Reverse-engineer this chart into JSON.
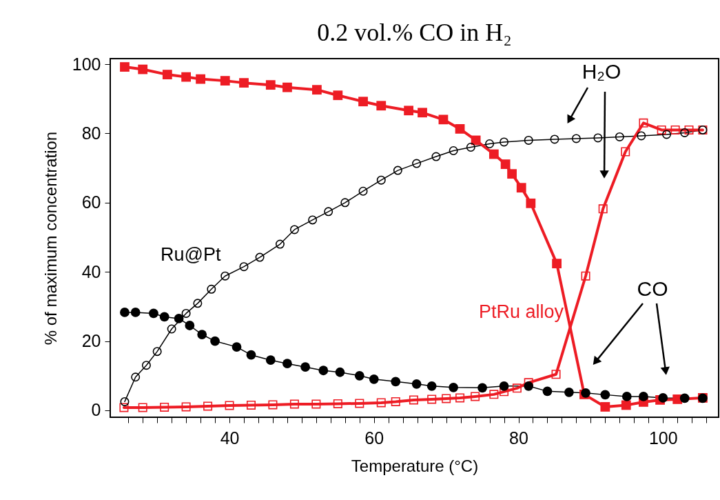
{
  "chart_data": {
    "type": "line",
    "title": "0.2 vol.% CO in H₂",
    "xlabel": "Temperature (°C)",
    "ylabel": "% of maximum concentration",
    "xlim": [
      23.5,
      107.7
    ],
    "ylim": [
      -2,
      101.6
    ],
    "xticks": [
      {
        "value": 26,
        "label": null
      },
      {
        "value": 28,
        "label": null
      },
      {
        "value": 30,
        "label": null
      },
      {
        "value": 32,
        "label": null
      },
      {
        "value": 34,
        "label": null
      },
      {
        "value": 36,
        "label": null
      },
      {
        "value": 38,
        "label": null
      },
      40,
      {
        "value": 42,
        "label": null
      },
      {
        "value": 44,
        "label": null
      },
      {
        "value": 46,
        "label": null
      },
      {
        "value": 48,
        "label": null
      },
      {
        "value": 50,
        "label": null
      },
      {
        "value": 52,
        "label": null
      },
      {
        "value": 54,
        "label": null
      },
      {
        "value": 56,
        "label": null
      },
      {
        "value": 58,
        "label": null
      },
      60,
      {
        "value": 62,
        "label": null
      },
      {
        "value": 64,
        "label": null
      },
      {
        "value": 66,
        "label": null
      },
      {
        "value": 68,
        "label": null
      },
      {
        "value": 70,
        "label": null
      },
      {
        "value": 72,
        "label": null
      },
      {
        "value": 74,
        "label": null
      },
      {
        "value": 76,
        "label": null
      },
      {
        "value": 78,
        "label": null
      },
      80,
      {
        "value": 82,
        "label": null
      },
      {
        "value": 84,
        "label": null
      },
      {
        "value": 86,
        "label": null
      },
      {
        "value": 88,
        "label": null
      },
      {
        "value": 90,
        "label": null
      },
      {
        "value": 92,
        "label": null
      },
      {
        "value": 94,
        "label": null
      },
      {
        "value": 96,
        "label": null
      },
      {
        "value": 98,
        "label": null
      },
      100,
      {
        "value": 102,
        "label": null
      },
      {
        "value": 104,
        "label": null
      },
      {
        "value": 106,
        "label": null
      }
    ],
    "yticks": [
      0,
      20,
      40,
      60,
      80,
      100
    ],
    "grid": false,
    "annotations": [
      "Ru@Pt",
      "PtRu alloy",
      "H₂O",
      "CO"
    ],
    "series": [
      {
        "color": "#000000",
        "marker": "circle",
        "x": [
          25.5,
          27,
          29.5,
          31,
          33,
          34.5,
          36.2,
          38,
          41,
          43,
          45.7,
          48,
          50.5,
          53,
          55.3,
          58,
          60,
          63,
          65.9,
          68,
          71,
          75,
          78,
          81.4,
          84,
          87,
          89.3,
          92,
          95,
          97.3,
          100,
          103,
          105.5
        ],
        "values": [
          28.3,
          28.3,
          28,
          27,
          26.5,
          24.5,
          21.9,
          20,
          18.3,
          16,
          14.5,
          13.5,
          12.5,
          11.5,
          11,
          10,
          9,
          8.3,
          7.6,
          7,
          6.6,
          6.5,
          7,
          7,
          5.5,
          5.2,
          5,
          4.5,
          4,
          4,
          3.6,
          3.5,
          3.5
        ]
      },
      {
        "color": "#000000",
        "marker": "circle",
        "x": [
          25.5,
          27,
          28.5,
          30,
          32,
          34,
          35.6,
          37.5,
          39.4,
          42,
          44.2,
          47,
          49,
          51.5,
          53.7,
          56,
          58.5,
          61,
          63.3,
          65.9,
          68.6,
          71,
          73.4,
          76,
          78,
          81.4,
          85,
          88,
          91,
          94,
          97,
          100.5,
          103,
          105.5
        ],
        "values": [
          2.5,
          9.6,
          13,
          17,
          23.5,
          28,
          30.9,
          35,
          38.8,
          41.5,
          44.2,
          48,
          52.2,
          55,
          57.4,
          60,
          63.3,
          66.5,
          69.3,
          71.3,
          73.3,
          75,
          76,
          77,
          77.5,
          78,
          78.3,
          78.5,
          78.7,
          79,
          79.3,
          79.7,
          80.2,
          81
        ]
      },
      {
        "color": "#ed1c24",
        "marker": "square",
        "x": [
          25.5,
          28,
          31.4,
          34,
          36,
          39.4,
          42,
          45.7,
          48,
          52.1,
          55,
          58.5,
          61,
          64.8,
          66.7,
          69.6,
          71.9,
          74.1,
          76.6,
          78.2,
          79.1,
          80.4,
          81.7,
          85.3,
          89.1,
          92,
          94.9,
          97.3,
          99.6,
          102,
          105.5
        ],
        "values": [
          99.2,
          98.5,
          97,
          96.3,
          95.7,
          95.2,
          94.6,
          94,
          93.3,
          92.6,
          91,
          89.2,
          88,
          86.6,
          86,
          84,
          81.3,
          78,
          74,
          71.1,
          68.3,
          64.3,
          59.8,
          42.4,
          4.6,
          1,
          1.5,
          2.4,
          3,
          3.2,
          3.6
        ]
      },
      {
        "color": "#ed1c24",
        "marker": "square",
        "x": [
          25.4,
          28,
          31,
          34,
          37,
          40,
          43,
          46,
          49,
          52,
          55,
          58,
          61,
          63,
          65.5,
          68,
          70,
          71.9,
          74,
          76.6,
          78,
          79.8,
          81.4,
          85.2,
          89.3,
          91.7,
          94.8,
          97.3,
          99.8,
          101.7,
          103.6,
          105.5
        ],
        "values": [
          0.8,
          0.8,
          0.9,
          1,
          1.2,
          1.4,
          1.5,
          1.6,
          1.8,
          1.8,
          1.9,
          2,
          2.2,
          2.5,
          3,
          3.2,
          3.4,
          3.6,
          4,
          4.6,
          5.4,
          6.4,
          8,
          10.4,
          38.8,
          58.2,
          74.7,
          83,
          81,
          81,
          81,
          81
        ]
      }
    ]
  }
}
